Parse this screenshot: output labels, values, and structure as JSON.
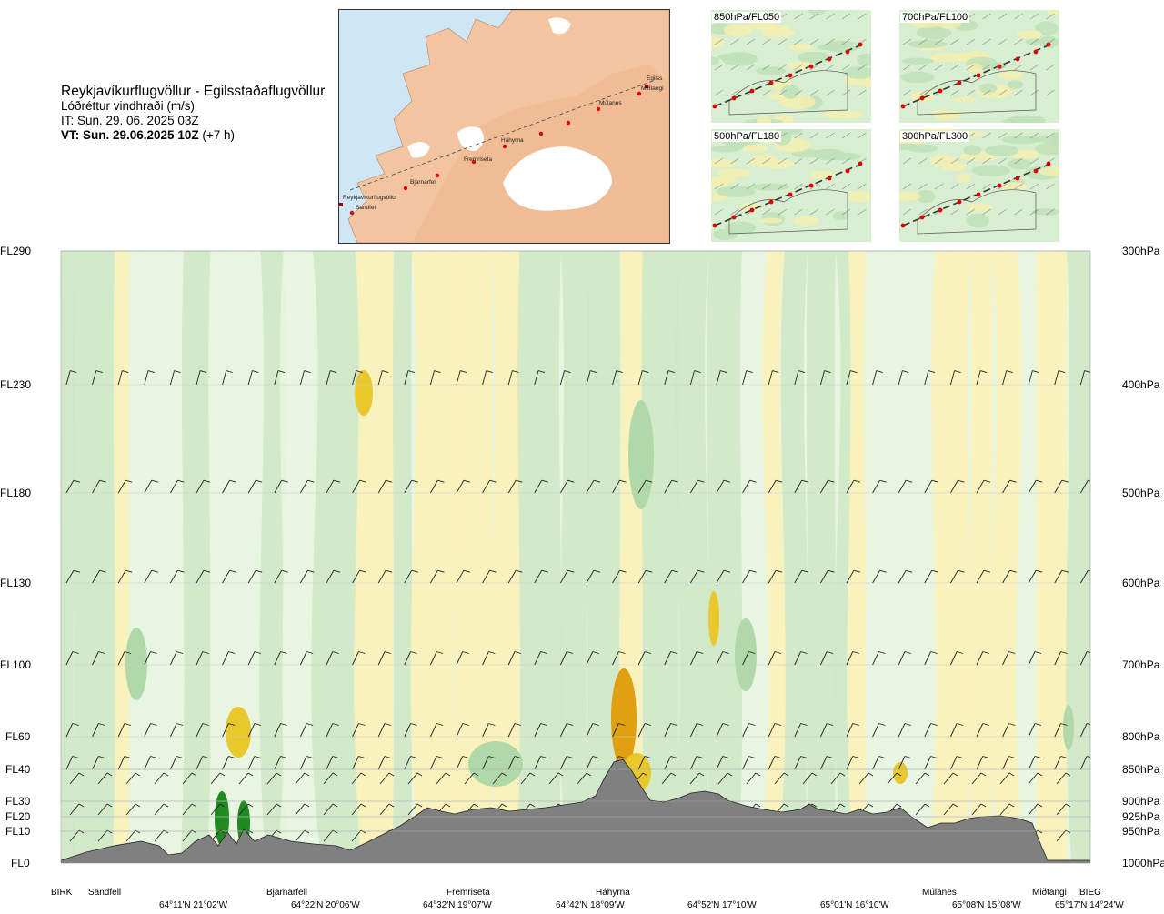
{
  "header": {
    "route": "Reykjavíkurflugvöllur - Egilsstaðaflugvöllur",
    "parameter": "Lóðréttur vindhraði (m/s)",
    "issue_time": "IT: Sun. 29. 06. 2025 03Z",
    "valid_time_bold": "VT: Sun. 29.06.2025 10Z",
    "valid_time_offset": "(+7 h)"
  },
  "route_map": {
    "points": [
      "Reykjavíkurflugvöllur",
      "Sandfell",
      "Bjarnarfell",
      "Fremriseta",
      "Háhyrna",
      "Múlanes",
      "Miðtangi",
      "Egilss"
    ],
    "colors": {
      "ocean": "#cfe6f5",
      "land": "#f2c4a0",
      "ice": "#ffffff",
      "route_point": "#e00000"
    }
  },
  "thumbnails": [
    {
      "label": "850hPa/FL050"
    },
    {
      "label": "700hPa/FL100"
    },
    {
      "label": "500hPa/FL180"
    },
    {
      "label": "300hPa/FL300"
    }
  ],
  "chart_data": {
    "type": "heatmap",
    "title": "",
    "y_left_ticks": [
      {
        "label": "FL290",
        "p": 300
      },
      {
        "label": "FL230",
        "p": 400
      },
      {
        "label": "FL180",
        "p": 500
      },
      {
        "label": "FL130",
        "p": 600
      },
      {
        "label": "FL100",
        "p": 700
      },
      {
        "label": "FL60",
        "p": 800
      },
      {
        "label": "FL40",
        "p": 850
      },
      {
        "label": "FL30",
        "p": 900
      },
      {
        "label": "FL20",
        "p": 925
      },
      {
        "label": "FL10",
        "p": 950
      },
      {
        "label": "FL0",
        "p": 1000
      }
    ],
    "y_right_ticks": [
      "300hPa",
      "400hPa",
      "500hPa",
      "600hPa",
      "700hPa",
      "800hPa",
      "850hPa",
      "900hPa",
      "925hPa",
      "950hPa",
      "1000hPa"
    ],
    "pressure_levels": [
      300,
      400,
      500,
      600,
      700,
      800,
      850,
      900,
      925,
      950,
      1000
    ],
    "x_locations": [
      "BIRK",
      "Sandfell",
      "Bjarnarfell",
      "Fremriseta",
      "Háhyrna",
      "Múlanes",
      "Miðtangi",
      "BIEG"
    ],
    "x_coordinates": [
      "64°11'N 21°02'W",
      "64°22'N 20°06'W",
      "64°32'N 19°07'W",
      "64°42'N 18°09'W",
      "64°52'N 17°10'W",
      "65°01'N 16°10'W",
      "65°08'N 15°08'W",
      "65°17'N 14°24'W"
    ],
    "colors": {
      "updraft_weak": "#fbf2b8",
      "updraft_moderate": "#f0e890",
      "updraft_strong": "#e8c82a",
      "updraft_very_strong": "#e0a010",
      "downdraft_weak": "#e8f5e0",
      "downdraft_moderate": "#cfe8c8",
      "downdraft_strong": "#b0d8a8",
      "downdraft_very_strong": "#208a20",
      "terrain": "#808080",
      "grid": "#cccccc"
    },
    "legend": "none",
    "grid": true
  }
}
